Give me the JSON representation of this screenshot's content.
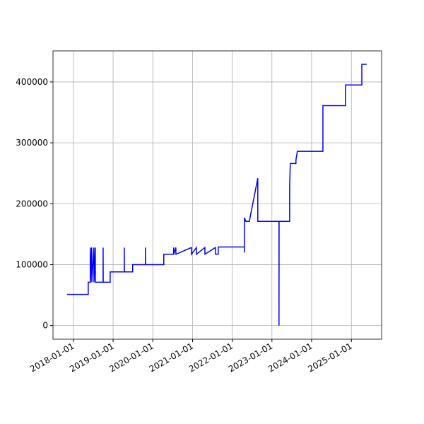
{
  "chart_data": {
    "type": "line",
    "color": "#0000ff",
    "grid": true,
    "x": [
      "2017-11-03",
      "2018-05-17",
      "2018-05-17",
      "2018-06-05",
      "2018-06-05",
      "2018-06-06",
      "2018-06-18",
      "2018-06-19",
      "2018-07-08",
      "2018-07-09",
      "2018-07-21",
      "2018-07-22",
      "2018-10-01",
      "2018-10-01",
      "2018-10-02",
      "2018-12-05",
      "2018-12-05",
      "2019-04-14",
      "2019-04-14",
      "2019-04-15",
      "2019-06-30",
      "2019-06-30",
      "2019-10-25",
      "2019-10-25",
      "2019-10-26",
      "2020-04-11",
      "2020-04-11",
      "2020-07-11",
      "2020-07-11",
      "2020-07-12",
      "2020-07-31",
      "2020-08-01",
      "2020-12-21",
      "2020-12-22",
      "2021-02-05",
      "2021-02-06",
      "2021-04-24",
      "2021-04-25",
      "2021-07-30",
      "2021-07-31",
      "2021-08-25",
      "2021-08-25",
      "2022-04-23",
      "2022-04-23",
      "2022-04-23",
      "2022-05-06",
      "2022-06-07",
      "2022-08-24",
      "2022-08-24",
      "2023-03-07",
      "2023-03-07",
      "2023-03-08",
      "2023-06-13",
      "2023-06-13",
      "2023-06-19",
      "2023-08-10",
      "2023-08-10",
      "2023-08-23",
      "2024-04-14",
      "2024-04-14",
      "2024-04-14",
      "2024-11-08",
      "2024-11-08",
      "2025-04-07",
      "2025-04-07",
      "2025-05-22"
    ],
    "values": [
      51000,
      51000,
      71000,
      71000,
      128000,
      71000,
      128000,
      71000,
      128000,
      71000,
      128000,
      71000,
      71000,
      128000,
      71000,
      71000,
      88000,
      88000,
      128000,
      88000,
      88000,
      100000,
      100000,
      128000,
      100000,
      100000,
      117000,
      117000,
      128000,
      117000,
      128000,
      117000,
      128000,
      117000,
      128000,
      117000,
      128000,
      117000,
      128000,
      117000,
      117000,
      129000,
      129000,
      120000,
      177000,
      171000,
      171000,
      242000,
      171000,
      171000,
      0,
      171000,
      171000,
      227000,
      266000,
      266000,
      272000,
      286000,
      286000,
      295000,
      361000,
      361000,
      395000,
      395000,
      429000,
      429000
    ],
    "xlim": [
      "2017-06-27",
      "2025-10-06"
    ],
    "xticks": [
      "2018-01-01",
      "2019-01-01",
      "2020-01-01",
      "2021-01-01",
      "2022-01-01",
      "2023-01-01",
      "2024-01-01",
      "2025-01-01"
    ],
    "ylim": [
      -22500,
      451000
    ],
    "yticks": [
      0,
      100000,
      200000,
      300000,
      400000
    ]
  }
}
